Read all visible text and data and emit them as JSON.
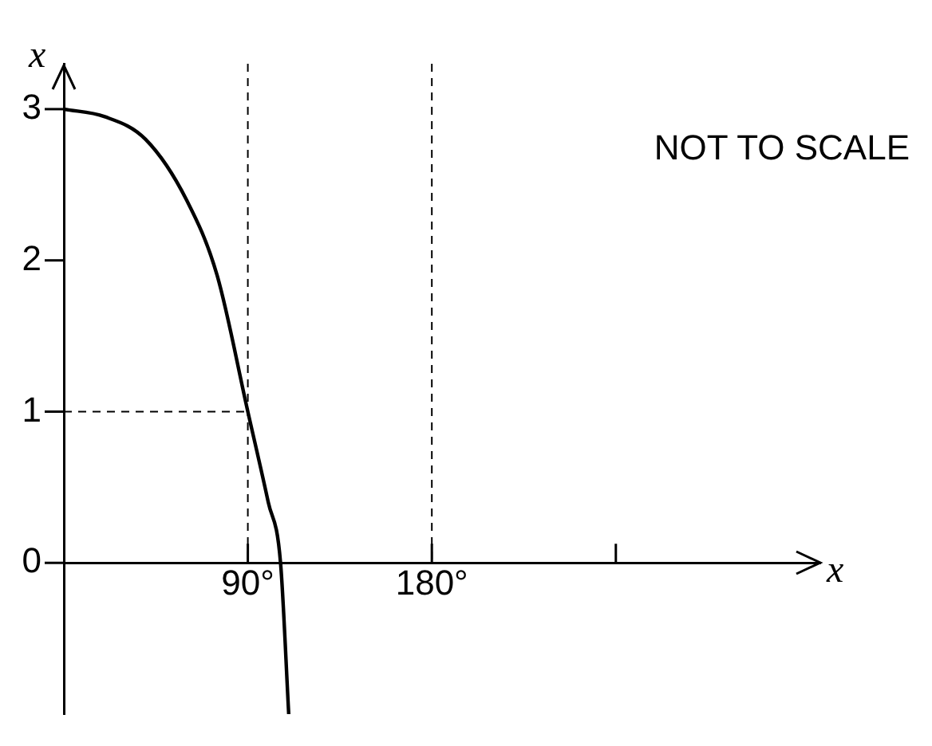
{
  "chart_data": {
    "type": "line",
    "xlabel": "x",
    "ylabel": "x",
    "x": [
      0,
      20,
      40,
      60,
      75,
      90,
      100,
      106,
      110
    ],
    "series": [
      {
        "color": "#000000",
        "values": [
          3,
          2.95,
          2.8,
          2.4,
          1.9,
          1,
          0.4,
          0,
          -1
        ]
      }
    ],
    "xlim": [
      0,
      370
    ],
    "ylim": [
      -1,
      3.3
    ],
    "xticks": [
      {
        "value": 90,
        "label": "90°"
      },
      {
        "value": 180,
        "label": "180°"
      },
      {
        "value": 270,
        "label": null
      }
    ],
    "yticks": [
      0,
      1,
      2,
      3
    ],
    "ref_lines": [
      {
        "axis": "x",
        "value": 90,
        "line_style": "dashed"
      },
      {
        "axis": "x",
        "value": 180,
        "line_style": "dashed"
      },
      {
        "axis": "y",
        "value": 1,
        "line_style": "dashed"
      }
    ],
    "annotations": [
      "NOT TO SCALE"
    ],
    "grid": false,
    "legend": false,
    "marker": "none",
    "line_style": "solid"
  }
}
